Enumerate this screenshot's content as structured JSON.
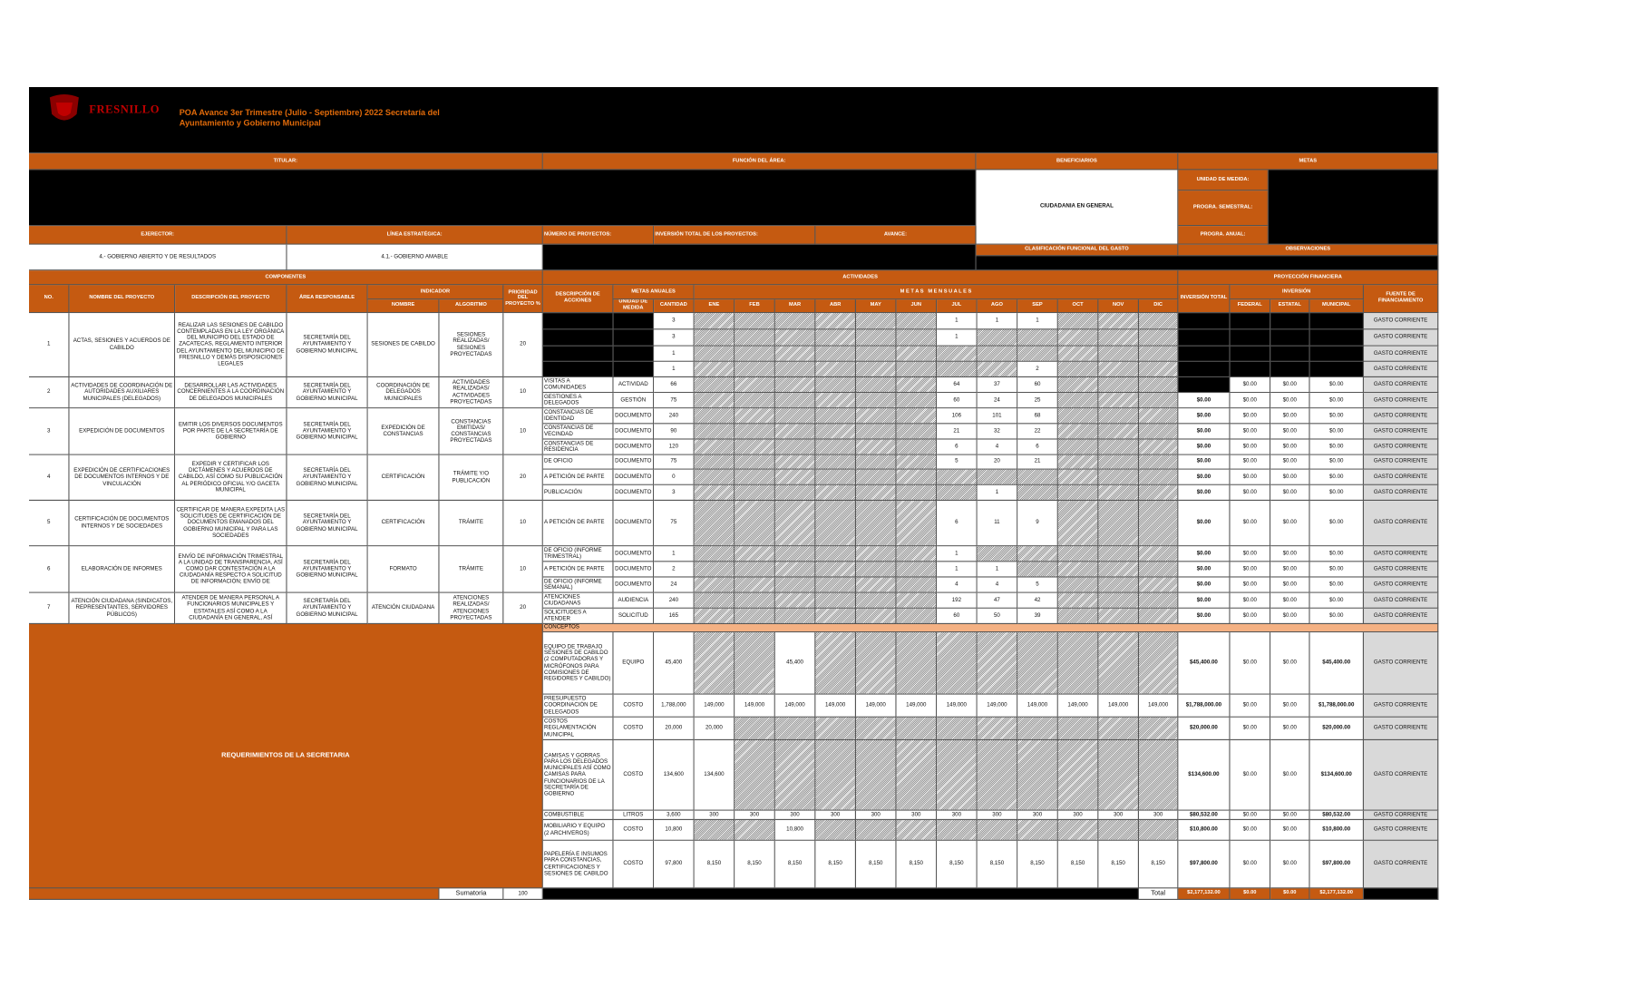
{
  "header": {
    "title": "POA Avance 3er Trimestre (Julio - Septiembre) 2022 Secretaría del Ayuntamiento y Gobierno Municipal",
    "logo_text": "FRESNILLO"
  },
  "labels": {
    "titular": "TITULAR:",
    "funcion": "FUNCIÓN DEL ÁREA:",
    "beneficiarios": "BENEFICIARIOS",
    "metas": "METAS",
    "beneficiarios_value": "CIUDADANIA EN GENERAL",
    "unidad_medida": "UNIDAD DE MEDIDA:",
    "semestral": "PROGRA. SEMESTRAL:",
    "anual": "PROGRA. ANUAL:",
    "ejerector": "EJERECTOR:",
    "linea": "LÍNEA ESTRATÉGICA:",
    "numero_proyectos": "NÚMERO DE PROYECTOS:",
    "inversion_total_proyectos": "INVERSIÓN TOTAL DE LOS PROYECTOS:",
    "avance": "AVANCE:",
    "eje_value": "4.- GOBIERNO ABIERTO Y DE RESULTADOS",
    "linea_value": "4.1.- GOBIERNO AMABLE",
    "clasificacion": "CLASIFICACIÓN FUNCIONAL DEL GASTO",
    "observaciones": "OBSERVACIONES",
    "componentes": "COMPONENTES",
    "actividades": "ACTIVIDADES",
    "proyeccion": "PROYECCIÓN FINANCIERA",
    "requerimientos": "REQUERIMIENTOS DE LA SECRETARIA",
    "conceptos": "CONCEPTOS",
    "sumatoria": "Sumatoria",
    "sumatoria_value": 100,
    "total": "Total"
  },
  "columns": {
    "no": "NO.",
    "nombre": "NOMBRE DEL PROYECTO",
    "descripcion": "DESCRIPCIÓN DEL PROYECTO",
    "area": "ÁREA RESPONSABLE",
    "indicador": "INDICADOR",
    "ind_nombre": "NOMBRE",
    "algoritmo": "ALGORITMO",
    "prioridad": "PRIORIDAD DEL PROYECTO %",
    "acciones": "DESCRIPCIÓN DE ACCIONES",
    "metas_anuales": "METAS ANUALES",
    "unidad": "UNIDAD DE MEDIDA",
    "cantidad": "CANTIDAD",
    "metas_mensuales": "M E T A S   M E N S U A L E S",
    "months": [
      "ENE",
      "FEB",
      "MAR",
      "ABR",
      "MAY",
      "JUN",
      "JUL",
      "AGO",
      "SEP",
      "OCT",
      "NOV",
      "DIC"
    ],
    "inversion_total": "INVERSIÓN TOTAL",
    "inversion": "INVERSIÓN",
    "federal": "FEDERAL",
    "estatal": "ESTATAL",
    "municipal": "MUNICIPAL",
    "fuente": "FUENTE DE FINANCIAMIENTO"
  },
  "projects": [
    {
      "no": 1,
      "nombre": "ACTAS, SESIONES Y ACUERDOS DE CABILDO",
      "descripcion": "REALIZAR LAS SESIONES DE CABILDO CONTEMPLADAS EN LA LEY ORGÁNICA DEL MUNICIPIO DEL ESTADO DE ZACATECAS, REGLAMENTO INTERIOR DEL AYUNTAMIENTO DEL MUNICIPIO DE FRESNILLO Y DEMÁS DISPOSICIONES LEGALES",
      "area": "SECRETARÍA DEL AYUNTAMIENTO Y GOBIERNO MUNICIPAL",
      "indicador": "SESIONES DE CABILDO",
      "algoritmo": "SESIONES REALIZADAS/ SESIONES PROYECTADAS",
      "prioridad": 20
    },
    {
      "no": 2,
      "nombre": "ACTIVIDADES DE COORDINACIÓN DE AUTORIDADES AUXILIARES MUNICIPALES (DELEGADOS)",
      "descripcion": "DESARROLLAR LAS ACTIVIDADES CONCERNIENTES A LA COORDINACIÓN DE DELEGADOS MUNICIPALES",
      "area": "SECRETARÍA DEL AYUNTAMIENTO Y GOBIERNO MUNICIPAL",
      "indicador": "COORDINACIÓN DE DELEGADOS MUNICIPALES",
      "algoritmo": "ACTIVIDADES REALIZADAS/ ACTIVIDADES PROYECTADAS",
      "prioridad": 10
    },
    {
      "no": 3,
      "nombre": "EXPEDICIÓN DE DOCUMENTOS",
      "descripcion": "EMITIR LOS DIVERSOS DOCUMENTOS POR PARTE DE LA SECRETARÍA DE GOBIERNO",
      "area": "SECRETARÍA DEL AYUNTAMIENTO Y GOBIERNO MUNICIPAL",
      "indicador": "EXPEDICIÓN DE CONSTANCIAS",
      "algoritmo": "CONSTANCIAS EMITIDAS/ CONSTANCIAS PROYECTADAS",
      "prioridad": 10
    },
    {
      "no": 4,
      "nombre": "EXPEDICIÓN DE CERTIFICACIONES DE DOCUMENTOS INTERNOS Y DE VINCULACIÓN",
      "descripcion": "EXPEDIR Y CERTIFICAR LOS DICTÁMENES Y ACUERDOS DE CABILDO, ASÍ COMO SU PUBLICACIÓN AL PERIÓDICO OFICIAL Y/O GACETA MUNICIPAL",
      "area": "SECRETARÍA DEL AYUNTAMIENTO Y GOBIERNO MUNICIPAL",
      "indicador": "CERTIFICACIÓN",
      "algoritmo": "TRÁMITE Y/O PUBLICACIÓN",
      "prioridad": 20
    },
    {
      "no": 5,
      "nombre": "CERTIFICACIÓN DE DOCUMENTOS INTERNOS Y DE SOCIEDADES",
      "descripcion": "CERTIFICAR DE MANERA EXPEDITA LAS SOLICITUDES DE CERTIFICACIÓN DE DOCUMENTOS EMANADOS DEL GOBIERNO MUNICIPAL Y PARA LAS SOCIEDADES",
      "area": "SECRETARÍA DEL AYUNTAMIENTO Y GOBIERNO MUNICIPAL",
      "indicador": "CERTIFICACIÓN",
      "algoritmo": "TRÁMITE",
      "prioridad": 10
    },
    {
      "no": 6,
      "nombre": "ELABORACIÓN DE INFORMES",
      "descripcion": "ENVÍO DE INFORMACIÓN TRIMESTRAL A LA UNIDAD DE TRANSPARENCIA, ASÍ COMO DAR CONTESTACIÓN A LA CIUDADANÍA RESPECTO A SOLICITUD DE INFORMACIÓN; ENVÍO DE",
      "area": "SECRETARÍA DEL AYUNTAMIENTO Y GOBIERNO MUNICIPAL",
      "indicador": "FORMATO",
      "algoritmo": "TRÁMITE",
      "prioridad": 10
    },
    {
      "no": 7,
      "nombre": "ATENCIÓN CIUDADANA (SINDICATOS, REPRESENTANTES, SERVIDORES PÚBLICOS)",
      "descripcion": "ATENDER DE MANERA PERSONAL A FUNCIONARIOS MUNICIPALES Y ESTATALES ASÍ COMO A LA CIUDADANÍA EN GENERAL, ASÍ",
      "area": "SECRETARÍA DEL AYUNTAMIENTO Y GOBIERNO MUNICIPAL",
      "indicador": "ATENCIÓN CIUDADANA",
      "algoritmo": "ATENCIONES REALIZADAS/ ATENCIONES PROYECTADAS",
      "prioridad": 20
    }
  ],
  "activities": [
    {
      "accion": null,
      "unidad": null,
      "cantidad": 3,
      "meses": [
        1,
        1,
        1
      ],
      "total": null,
      "federal": null,
      "estatal": null,
      "municipal": null,
      "fuente": "GASTO CORRIENTE"
    },
    {
      "accion": null,
      "unidad": null,
      "cantidad": 3,
      "meses": [
        1,
        null,
        null
      ],
      "total": null,
      "federal": null,
      "estatal": null,
      "municipal": null,
      "fuente": "GASTO CORRIENTE"
    },
    {
      "accion": null,
      "unidad": null,
      "cantidad": 1,
      "meses": [
        null,
        null,
        null
      ],
      "total": null,
      "federal": null,
      "estatal": null,
      "municipal": null,
      "fuente": "GASTO CORRIENTE"
    },
    {
      "accion": null,
      "unidad": null,
      "cantidad": 1,
      "meses": [
        null,
        null,
        2
      ],
      "total": null,
      "federal": null,
      "estatal": null,
      "municipal": null,
      "fuente": "GASTO CORRIENTE"
    },
    {
      "accion": "VISITAS A COMUNIDADES",
      "unidad": "ACTIVIDAD",
      "cantidad": 66,
      "meses": [
        64,
        37,
        60
      ],
      "total": null,
      "federal": "$0.00",
      "estatal": "$0.00",
      "municipal": "$0.00",
      "fuente": "GASTO CORRIENTE"
    },
    {
      "accion": "GESTIONES A DELEGADOS",
      "unidad": "GESTIÓN",
      "cantidad": 75,
      "meses": [
        60,
        24,
        25
      ],
      "total": "$0.00",
      "federal": "$0.00",
      "estatal": "$0.00",
      "municipal": "$0.00",
      "fuente": "GASTO CORRIENTE"
    },
    {
      "accion": "CONSTANCIAS DE IDENTIDAD",
      "unidad": "DOCUMENTO",
      "cantidad": 240,
      "meses": [
        106,
        101,
        68
      ],
      "total": "$0.00",
      "federal": "$0.00",
      "estatal": "$0.00",
      "municipal": "$0.00",
      "fuente": "GASTO CORRIENTE"
    },
    {
      "accion": "CONSTANCIAS DE VECINDAD",
      "unidad": "DOCUMENTO",
      "cantidad": 90,
      "meses": [
        21,
        32,
        22
      ],
      "total": "$0.00",
      "federal": "$0.00",
      "estatal": "$0.00",
      "municipal": "$0.00",
      "fuente": "GASTO CORRIENTE"
    },
    {
      "accion": "CONSTANCIAS DE RESIDENCIA",
      "unidad": "DOCUMENTO",
      "cantidad": 120,
      "meses": [
        6,
        4,
        6
      ],
      "total": "$0.00",
      "federal": "$0.00",
      "estatal": "$0.00",
      "municipal": "$0.00",
      "fuente": "GASTO CORRIENTE"
    },
    {
      "accion": "DE OFICIO",
      "unidad": "DOCUMENTO",
      "cantidad": 75,
      "meses": [
        5,
        20,
        21
      ],
      "total": "$0.00",
      "federal": "$0.00",
      "estatal": "$0.00",
      "municipal": "$0.00",
      "fuente": "GASTO CORRIENTE"
    },
    {
      "accion": "A PETICIÓN DE PARTE",
      "unidad": "DOCUMENTO",
      "cantidad": 0,
      "meses": [
        null,
        null,
        null
      ],
      "total": "$0.00",
      "federal": "$0.00",
      "estatal": "$0.00",
      "municipal": "$0.00",
      "fuente": "GASTO CORRIENTE"
    },
    {
      "accion": "PUBLICACIÓN",
      "unidad": "DOCUMENTO",
      "cantidad": 3,
      "meses": [
        null,
        1,
        null
      ],
      "total": "$0.00",
      "federal": "$0.00",
      "estatal": "$0.00",
      "municipal": "$0.00",
      "fuente": "GASTO CORRIENTE"
    },
    {
      "accion": "A PETICIÓN DE PARTE",
      "unidad": "DOCUMENTO",
      "cantidad": 75,
      "meses": [
        6,
        11,
        9
      ],
      "total": "$0.00",
      "federal": "$0.00",
      "estatal": "$0.00",
      "municipal": "$0.00",
      "fuente": "GASTO CORRIENTE"
    },
    {
      "accion": "DE OFICIO (INFORME TRIMESTRAL)",
      "unidad": "DOCUMENTO",
      "cantidad": 1,
      "meses": [
        1,
        null,
        null
      ],
      "total": "$0.00",
      "federal": "$0.00",
      "estatal": "$0.00",
      "municipal": "$0.00",
      "fuente": "GASTO CORRIENTE"
    },
    {
      "accion": "A PETICIÓN DE PARTE",
      "unidad": "DOCUMENTO",
      "cantidad": 2,
      "meses": [
        1,
        1,
        null
      ],
      "total": "$0.00",
      "federal": "$0.00",
      "estatal": "$0.00",
      "municipal": "$0.00",
      "fuente": "GASTO CORRIENTE"
    },
    {
      "accion": "DE OFICIO (INFORME SEMANAL)",
      "unidad": "DOCUMENTO",
      "cantidad": 24,
      "meses": [
        4,
        4,
        5
      ],
      "total": "$0.00",
      "federal": "$0.00",
      "estatal": "$0.00",
      "municipal": "$0.00",
      "fuente": "GASTO CORRIENTE"
    },
    {
      "accion": "ATENCIONES CIUDADANAS",
      "unidad": "AUDIENCIA",
      "cantidad": 240,
      "meses": [
        192,
        47,
        42
      ],
      "total": "$0.00",
      "federal": "$0.00",
      "estatal": "$0.00",
      "municipal": "$0.00",
      "fuente": "GASTO CORRIENTE"
    },
    {
      "accion": "SOLICITUDES A ATENDER",
      "unidad": "SOLICITUD",
      "cantidad": 165,
      "meses": [
        60,
        50,
        39
      ],
      "total": "$0.00",
      "federal": "$0.00",
      "estatal": "$0.00",
      "municipal": "$0.00",
      "fuente": "GASTO CORRIENTE"
    }
  ],
  "requirements": [
    {
      "concepto": "EQUIPO DE TRABAJO SESIONES DE CABILDO (2 COMPUTADORAS Y MICRÓFONOS PARA COMISIONES DE REGIDORES Y CABILDO)",
      "unidad": "EQUIPO",
      "cantidad": "45,400",
      "meses": [
        null,
        null,
        "45,400",
        null,
        null,
        null,
        null,
        null,
        null,
        null,
        null,
        null
      ],
      "total": "$45,400.00",
      "federal": "$0.00",
      "estatal": "$0.00",
      "municipal": "$45,400.00",
      "fuente": "GASTO CORRIENTE"
    },
    {
      "concepto": "PRESUPUESTO COORDINACIÓN DE DELEGADOS",
      "unidad": "COSTO",
      "cantidad": "1,788,000",
      "meses": [
        "149,000",
        "149,000",
        "149,000",
        "149,000",
        "149,000",
        "149,000",
        "149,000",
        "149,000",
        "149,000",
        "149,000",
        "149,000",
        "149,000"
      ],
      "total": "$1,788,000.00",
      "federal": "$0.00",
      "estatal": "$0.00",
      "municipal": "$1,788,000.00",
      "fuente": "GASTO CORRIENTE"
    },
    {
      "concepto": "COSTOS REGLAMENTACIÓN MUNICIPAL",
      "unidad": "COSTO",
      "cantidad": "20,000",
      "meses": [
        "20,000",
        null,
        null,
        null,
        null,
        null,
        null,
        null,
        null,
        null,
        null,
        null
      ],
      "total": "$20,000.00",
      "federal": "$0.00",
      "estatal": "$0.00",
      "municipal": "$20,000.00",
      "fuente": "GASTO CORRIENTE"
    },
    {
      "concepto": "CAMISAS Y GORRAS PARA LOS DELEGADOS MUNICIPALES ASÍ COMO CAMISAS PARA FUNCIONARIOS DE LA SECRETARÍA DE GOBIERNO",
      "unidad": "COSTO",
      "cantidad": "134,600",
      "meses": [
        "134,600",
        null,
        null,
        null,
        null,
        null,
        null,
        null,
        null,
        null,
        null,
        null
      ],
      "total": "$134,600.00",
      "federal": "$0.00",
      "estatal": "$0.00",
      "municipal": "$134,600.00",
      "fuente": "GASTO CORRIENTE"
    },
    {
      "concepto": "COMBUSTIBLE",
      "unidad": "LITROS",
      "cantidad": "3,600",
      "meses": [
        "300",
        "300",
        "300",
        "300",
        "300",
        "300",
        "300",
        "300",
        "300",
        "300",
        "300",
        "300"
      ],
      "total": "$80,532.00",
      "federal": "$0.00",
      "estatal": "$0.00",
      "municipal": "$80,532.00",
      "fuente": "GASTO CORRIENTE"
    },
    {
      "concepto": "MOBILIARIO Y EQUIPO (2 ARCHIVEROS)",
      "unidad": "COSTO",
      "cantidad": "10,800",
      "meses": [
        null,
        null,
        "10,800",
        null,
        null,
        null,
        null,
        null,
        null,
        null,
        null,
        null
      ],
      "total": "$10,800.00",
      "federal": "$0.00",
      "estatal": "$0.00",
      "municipal": "$10,800.00",
      "fuente": "GASTO CORRIENTE"
    },
    {
      "concepto": "PAPELERÍA E INSUMOS PARA CONSTANCIAS, CERTIFICACIONES Y SESIONES DE CABILDO",
      "unidad": "COSTO",
      "cantidad": "97,800",
      "meses": [
        "8,150",
        "8,150",
        "8,150",
        "8,150",
        "8,150",
        "8,150",
        "8,150",
        "8,150",
        "8,150",
        "8,150",
        "8,150",
        "8,150"
      ],
      "total": "$97,800.00",
      "federal": "$0.00",
      "estatal": "$0.00",
      "municipal": "$97,800.00",
      "fuente": "GASTO CORRIENTE"
    }
  ],
  "totals": {
    "total": "$2,177,132.00",
    "federal": "$0.00",
    "estatal": "$0.00",
    "municipal": "$2,177,132.00"
  }
}
